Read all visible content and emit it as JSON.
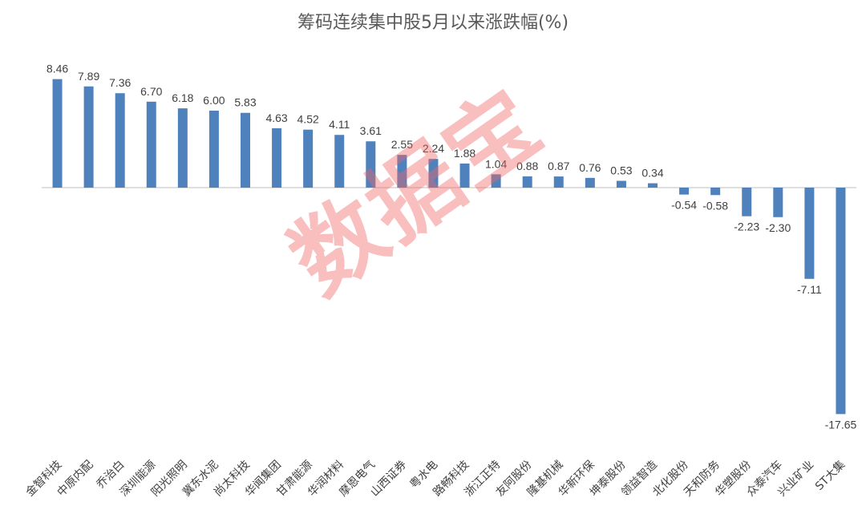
{
  "chart_data": {
    "type": "bar",
    "title": "筹码连续集中股5月以来涨跌幅(%)",
    "xlabel": "",
    "ylabel": "",
    "ylim": [
      -17.65,
      8.46
    ],
    "grid": false,
    "legend": "none",
    "categories": [
      "金智科技",
      "中原内配",
      "乔治白",
      "深圳能源",
      "阳光照明",
      "冀东水泥",
      "尚太科技",
      "华闻集团",
      "甘肃能源",
      "华润材料",
      "摩恩电气",
      "山西证券",
      "粤水电",
      "路畅科技",
      "浙江正特",
      "友阿股份",
      "隆基机械",
      "华新环保",
      "坤泰股份",
      "领益智造",
      "北化股份",
      "天和防务",
      "华塑股份",
      "众泰汽车",
      "兴业矿业",
      "ST大集"
    ],
    "series": [
      {
        "name": "涨跌幅",
        "values": [
          8.46,
          7.89,
          7.36,
          6.7,
          6.18,
          6.0,
          5.83,
          4.63,
          4.52,
          4.11,
          3.61,
          2.55,
          2.24,
          1.88,
          1.04,
          0.88,
          0.87,
          0.76,
          0.53,
          0.34,
          -0.54,
          -0.58,
          -2.23,
          -2.3,
          -7.11,
          -17.65
        ]
      }
    ],
    "value_labels": [
      "8.46",
      "7.89",
      "7.36",
      "6.70",
      "6.18",
      "6.00",
      "5.83",
      "4.63",
      "4.52",
      "4.11",
      "3.61",
      "2.55",
      "2.24",
      "1.88",
      "1.04",
      "0.88",
      "0.87",
      "0.76",
      "0.53",
      "0.34",
      "-0.54",
      "-0.58",
      "-2.23",
      "-2.30",
      "-7.11",
      "-17.65"
    ]
  },
  "watermark": "数据宝",
  "colors": {
    "bar": "#4f81bd",
    "title": "#595959",
    "label": "#404040",
    "axis": "#bfbfbf",
    "watermark": "#f06464"
  }
}
